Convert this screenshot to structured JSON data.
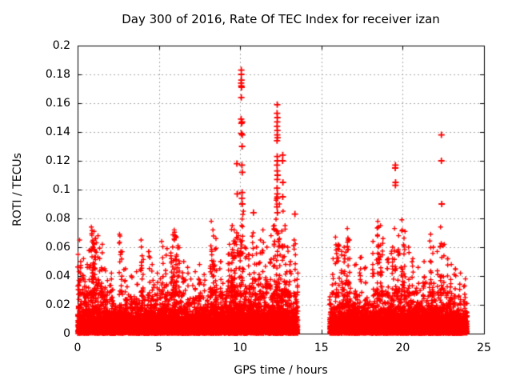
{
  "chart_data": {
    "type": "scatter",
    "title": "Day 300 of 2016, Rate Of TEC Index for receiver izan",
    "xlabel": "GPS time / hours",
    "ylabel": "ROTI / TECUs",
    "xlim": [
      0,
      25
    ],
    "ylim": [
      0,
      0.2
    ],
    "xticks": [
      0,
      5,
      10,
      15,
      20,
      25
    ],
    "xtick_labels": [
      "0",
      "5",
      "10",
      "15",
      "20",
      "25"
    ],
    "yticks": [
      0,
      0.02,
      0.04,
      0.06,
      0.08,
      0.1,
      0.12,
      0.14,
      0.16,
      0.18,
      0.2
    ],
    "ytick_labels": [
      "0",
      "0.02",
      "0.04",
      "0.06",
      "0.08",
      "0.1",
      "0.12",
      "0.14",
      "0.16",
      "0.18",
      "0.2"
    ],
    "grid": true,
    "legend": "none",
    "marker": {
      "shape": "plus",
      "color": "#ff0000"
    },
    "grid_color": "#a8a8a8",
    "axis_color": "#000000",
    "coverage_hours": [
      [
        0,
        13.55
      ],
      [
        15.5,
        23.97
      ]
    ],
    "baseline": {
      "description": "dense noise band of ROTI samples hugging 0-0.03 TECUs",
      "scale": 0.006,
      "max": 0.038,
      "steps_per_hour": 120,
      "samples_per_step": 5,
      "hourly_activity": [
        1.1,
        1.1,
        0.9,
        0.95,
        1.0,
        1.15,
        1.0,
        0.9,
        1.05,
        1.25,
        1.2,
        1.15,
        1.3,
        0.95,
        0,
        1.0,
        1.15,
        0.95,
        1.1,
        1.15,
        1.1,
        1.0,
        1.05,
        0.85
      ]
    },
    "clusters": [
      [
        0.05,
        0.055,
        10
      ],
      [
        0.15,
        0.065,
        12
      ],
      [
        0.35,
        0.052,
        10
      ],
      [
        0.55,
        0.048,
        8
      ],
      [
        0.75,
        0.058,
        10
      ],
      [
        0.9,
        0.074,
        22
      ],
      [
        1.0,
        0.071,
        20
      ],
      [
        1.1,
        0.066,
        14
      ],
      [
        1.3,
        0.068,
        12
      ],
      [
        1.5,
        0.062,
        10
      ],
      [
        1.7,
        0.045,
        8
      ],
      [
        2.1,
        0.042,
        8
      ],
      [
        2.6,
        0.069,
        10
      ],
      [
        2.7,
        0.057,
        8
      ],
      [
        2.9,
        0.045,
        6
      ],
      [
        3.3,
        0.04,
        7
      ],
      [
        3.6,
        0.043,
        7
      ],
      [
        3.9,
        0.065,
        12
      ],
      [
        4.0,
        0.054,
        8
      ],
      [
        4.4,
        0.057,
        9
      ],
      [
        4.6,
        0.048,
        7
      ],
      [
        4.85,
        0.042,
        6
      ],
      [
        5.2,
        0.064,
        10
      ],
      [
        5.45,
        0.059,
        9
      ],
      [
        5.75,
        0.056,
        10
      ],
      [
        5.9,
        0.072,
        24
      ],
      [
        6.05,
        0.068,
        20
      ],
      [
        6.2,
        0.061,
        14
      ],
      [
        6.5,
        0.05,
        8
      ],
      [
        6.8,
        0.046,
        7
      ],
      [
        7.2,
        0.043,
        7
      ],
      [
        7.5,
        0.048,
        8
      ],
      [
        7.8,
        0.041,
        6
      ],
      [
        8.2,
        0.078,
        16
      ],
      [
        8.35,
        0.072,
        14
      ],
      [
        8.5,
        0.066,
        10
      ],
      [
        8.8,
        0.05,
        8
      ],
      [
        9.3,
        0.062,
        14
      ],
      [
        9.5,
        0.075,
        22
      ],
      [
        9.65,
        0.072,
        18
      ],
      [
        9.8,
        0.07,
        16
      ],
      [
        9.95,
        0.068,
        14
      ],
      [
        10.07,
        0.09,
        18
      ],
      [
        10.15,
        0.085,
        12
      ],
      [
        10.35,
        0.06,
        8
      ],
      [
        10.55,
        0.055,
        8
      ],
      [
        10.8,
        0.07,
        12
      ],
      [
        10.95,
        0.06,
        8
      ],
      [
        11.2,
        0.065,
        10
      ],
      [
        11.4,
        0.072,
        12
      ],
      [
        11.6,
        0.06,
        9
      ],
      [
        11.85,
        0.068,
        10
      ],
      [
        12.1,
        0.075,
        16
      ],
      [
        12.25,
        0.095,
        20
      ],
      [
        12.4,
        0.09,
        16
      ],
      [
        12.6,
        0.085,
        14
      ],
      [
        12.75,
        0.075,
        12
      ],
      [
        12.9,
        0.06,
        8
      ],
      [
        13.1,
        0.05,
        8
      ],
      [
        13.35,
        0.065,
        10
      ],
      [
        13.5,
        0.042,
        6
      ],
      [
        15.7,
        0.052,
        8
      ],
      [
        15.9,
        0.067,
        12
      ],
      [
        16.05,
        0.062,
        10
      ],
      [
        16.25,
        0.057,
        9
      ],
      [
        16.45,
        0.06,
        10
      ],
      [
        16.6,
        0.073,
        14
      ],
      [
        16.7,
        0.065,
        9
      ],
      [
        17.1,
        0.048,
        7
      ],
      [
        17.4,
        0.053,
        8
      ],
      [
        17.7,
        0.046,
        6
      ],
      [
        18.2,
        0.064,
        9
      ],
      [
        18.45,
        0.078,
        16
      ],
      [
        18.6,
        0.075,
        14
      ],
      [
        18.75,
        0.066,
        10
      ],
      [
        19.1,
        0.052,
        8
      ],
      [
        19.35,
        0.06,
        9
      ],
      [
        19.55,
        0.073,
        12
      ],
      [
        19.75,
        0.068,
        10
      ],
      [
        19.95,
        0.079,
        14
      ],
      [
        20.1,
        0.071,
        12
      ],
      [
        20.35,
        0.06,
        8
      ],
      [
        20.6,
        0.052,
        7
      ],
      [
        20.9,
        0.046,
        6
      ],
      [
        21.3,
        0.05,
        8
      ],
      [
        21.7,
        0.069,
        12
      ],
      [
        21.85,
        0.06,
        8
      ],
      [
        22.15,
        0.057,
        9
      ],
      [
        22.35,
        0.074,
        14
      ],
      [
        22.5,
        0.062,
        10
      ],
      [
        22.75,
        0.052,
        8
      ],
      [
        22.95,
        0.048,
        6
      ],
      [
        23.2,
        0.045,
        7
      ],
      [
        23.5,
        0.042,
        6
      ],
      [
        23.8,
        0.038,
        5
      ]
    ],
    "outliers": [
      [
        10.07,
        0.183
      ],
      [
        10.07,
        0.18
      ],
      [
        10.08,
        0.176
      ],
      [
        10.06,
        0.174
      ],
      [
        10.07,
        0.172
      ],
      [
        10.09,
        0.171
      ],
      [
        10.07,
        0.164
      ],
      [
        10.06,
        0.149
      ],
      [
        10.08,
        0.146
      ],
      [
        10.07,
        0.139
      ],
      [
        10.12,
        0.147
      ],
      [
        10.13,
        0.138
      ],
      [
        10.12,
        0.13
      ],
      [
        10.11,
        0.117
      ],
      [
        10.13,
        0.112
      ],
      [
        10.12,
        0.098
      ],
      [
        10.11,
        0.094
      ],
      [
        10.13,
        0.09
      ],
      [
        12.28,
        0.159
      ],
      [
        12.27,
        0.153
      ],
      [
        12.29,
        0.15
      ],
      [
        12.28,
        0.147
      ],
      [
        12.27,
        0.144
      ],
      [
        12.29,
        0.141
      ],
      [
        12.28,
        0.138
      ],
      [
        12.3,
        0.136
      ],
      [
        12.27,
        0.134
      ],
      [
        12.28,
        0.123
      ],
      [
        12.29,
        0.12
      ],
      [
        12.27,
        0.117
      ],
      [
        12.28,
        0.113
      ],
      [
        12.3,
        0.11
      ],
      [
        12.28,
        0.107
      ],
      [
        12.27,
        0.101
      ],
      [
        12.29,
        0.097
      ],
      [
        12.28,
        0.094
      ],
      [
        12.27,
        0.088
      ],
      [
        12.29,
        0.084
      ],
      [
        12.62,
        0.124
      ],
      [
        12.61,
        0.12
      ],
      [
        12.63,
        0.105
      ],
      [
        12.62,
        0.095
      ],
      [
        9.8,
        0.118
      ],
      [
        9.82,
        0.097
      ],
      [
        10.82,
        0.084
      ],
      [
        13.37,
        0.083
      ],
      [
        19.55,
        0.117
      ],
      [
        19.54,
        0.115
      ],
      [
        19.56,
        0.105
      ],
      [
        19.55,
        0.103
      ],
      [
        22.38,
        0.138
      ],
      [
        22.38,
        0.12
      ],
      [
        22.4,
        0.09
      ]
    ],
    "seed": 42
  }
}
